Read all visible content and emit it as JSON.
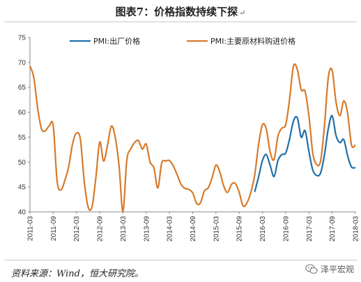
{
  "page": {
    "title": "图表7：价格指数持续下探",
    "title_mark": "↵",
    "source": "资料来源：Wind，恒大研究院。",
    "watermark": "泽平宏观"
  },
  "chart_data": {
    "type": "line",
    "title": "图表7：价格指数持续下探",
    "xlabel": "",
    "ylabel": "",
    "ylim": [
      40,
      75
    ],
    "yticks": [
      40,
      45,
      50,
      55,
      60,
      65,
      70,
      75
    ],
    "xrange": [
      "2011-03",
      "2018-03"
    ],
    "xticks": [
      "2011-03",
      "2011-09",
      "2012-03",
      "2012-09",
      "2013-03",
      "2013-09",
      "2014-03",
      "2014-09",
      "2015-03",
      "2015-09",
      "2016-03",
      "2016-09",
      "2017-03",
      "2017-09",
      "2018-03"
    ],
    "grid": false,
    "legend_position": "top",
    "series": [
      {
        "name": "PMI:出厂价格",
        "color": "#1f6fa8",
        "x": [
          "2016-01",
          "2016-02",
          "2016-03",
          "2016-04",
          "2016-05",
          "2016-06",
          "2016-07",
          "2016-08",
          "2016-09",
          "2016-10",
          "2016-11",
          "2016-12",
          "2017-01",
          "2017-02",
          "2017-03",
          "2017-04",
          "2017-05",
          "2017-06",
          "2017-07",
          "2017-08",
          "2017-09",
          "2017-10",
          "2017-11",
          "2017-12",
          "2018-01",
          "2018-02",
          "2018-03"
        ],
        "values": [
          44.0,
          47.0,
          50.3,
          51.5,
          49.3,
          47.1,
          50.3,
          51.5,
          51.8,
          54.6,
          58.2,
          58.9,
          55.0,
          56.3,
          52.1,
          48.4,
          47.3,
          47.8,
          51.4,
          56.7,
          59.3,
          55.3,
          53.9,
          54.5,
          51.2,
          49.0,
          48.9
        ]
      },
      {
        "name": "PMI:主要原材料购进价格",
        "color": "#d77a2a",
        "x": [
          "2011-03",
          "2011-04",
          "2011-05",
          "2011-06",
          "2011-07",
          "2011-08",
          "2011-09",
          "2011-10",
          "2011-11",
          "2011-12",
          "2012-01",
          "2012-02",
          "2012-03",
          "2012-04",
          "2012-05",
          "2012-06",
          "2012-07",
          "2012-08",
          "2012-09",
          "2012-10",
          "2012-11",
          "2012-12",
          "2013-01",
          "2013-02",
          "2013-03",
          "2013-04",
          "2013-05",
          "2013-06",
          "2013-07",
          "2013-08",
          "2013-09",
          "2013-10",
          "2013-11",
          "2013-12",
          "2014-01",
          "2014-02",
          "2014-03",
          "2014-04",
          "2014-05",
          "2014-06",
          "2014-07",
          "2014-08",
          "2014-09",
          "2014-10",
          "2014-11",
          "2014-12",
          "2015-01",
          "2015-02",
          "2015-03",
          "2015-04",
          "2015-05",
          "2015-06",
          "2015-07",
          "2015-08",
          "2015-09",
          "2015-10",
          "2015-11",
          "2015-12",
          "2016-01",
          "2016-02",
          "2016-03",
          "2016-04",
          "2016-05",
          "2016-06",
          "2016-07",
          "2016-08",
          "2016-09",
          "2016-10",
          "2016-11",
          "2016-12",
          "2017-01",
          "2017-02",
          "2017-03",
          "2017-04",
          "2017-05",
          "2017-06",
          "2017-07",
          "2017-08",
          "2017-09",
          "2017-10",
          "2017-11",
          "2017-12",
          "2018-01",
          "2018-02",
          "2018-03"
        ],
        "values": [
          69.3,
          66.9,
          60.7,
          56.6,
          56.3,
          57.3,
          57.3,
          46.2,
          44.4,
          46.3,
          49.1,
          53.7,
          55.8,
          54.6,
          46.2,
          41.0,
          41.0,
          46.8,
          54.0,
          50.2,
          53.3,
          57.2,
          55.0,
          49.2,
          40.1,
          50.4,
          52.6,
          53.9,
          54.3,
          52.6,
          53.6,
          50.0,
          48.8,
          44.8,
          49.8,
          50.2,
          50.3,
          49.2,
          47.4,
          45.5,
          44.7,
          44.5,
          43.8,
          41.7,
          41.8,
          44.2,
          44.8,
          46.8,
          49.4,
          48.0,
          45.2,
          43.9,
          45.5,
          45.7,
          43.9,
          41.2,
          41.8,
          43.9,
          47.4,
          53.5,
          57.5,
          56.6,
          52.0,
          50.5,
          55.2,
          56.8,
          57.5,
          62.6,
          69.2,
          68.6,
          64.5,
          64.2,
          59.3,
          51.8,
          49.5,
          50.2,
          57.2,
          67.0,
          68.4,
          62.0,
          59.3,
          62.3,
          59.7,
          53.4,
          53.4
        ]
      }
    ]
  }
}
